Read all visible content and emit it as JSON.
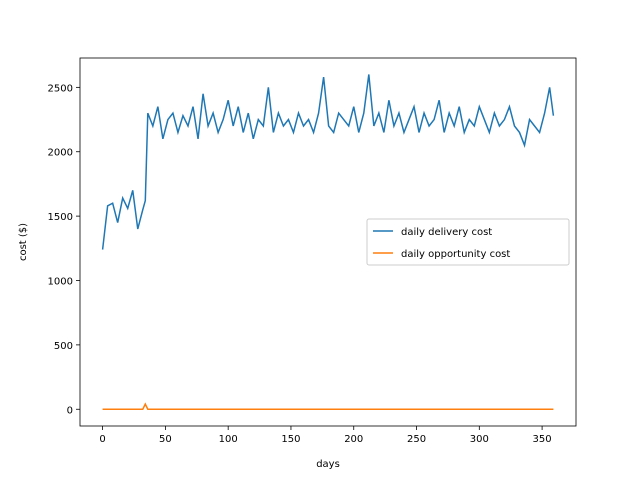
{
  "chart_data": {
    "type": "line",
    "xlabel": "days",
    "ylabel": "cost ($)",
    "x": [
      0,
      4,
      8,
      12,
      16,
      20,
      24,
      28,
      32,
      34,
      36,
      40,
      44,
      48,
      52,
      56,
      60,
      64,
      68,
      72,
      76,
      80,
      84,
      88,
      92,
      96,
      100,
      104,
      108,
      112,
      116,
      120,
      124,
      128,
      132,
      136,
      140,
      144,
      148,
      152,
      156,
      160,
      164,
      168,
      172,
      176,
      180,
      184,
      188,
      192,
      196,
      200,
      204,
      208,
      212,
      216,
      220,
      224,
      228,
      232,
      236,
      240,
      244,
      248,
      252,
      256,
      260,
      264,
      268,
      272,
      276,
      280,
      284,
      288,
      292,
      296,
      300,
      304,
      308,
      312,
      316,
      320,
      324,
      328,
      332,
      336,
      340,
      344,
      348,
      352,
      356,
      359
    ],
    "series": [
      {
        "name": "daily delivery cost",
        "color": "#1f77b4",
        "values": [
          1240,
          1580,
          1600,
          1450,
          1640,
          1560,
          1700,
          1400,
          1550,
          1620,
          2300,
          2200,
          2350,
          2100,
          2250,
          2300,
          2150,
          2280,
          2200,
          2350,
          2100,
          2450,
          2200,
          2300,
          2150,
          2250,
          2400,
          2200,
          2350,
          2150,
          2300,
          2100,
          2250,
          2200,
          2500,
          2150,
          2300,
          2200,
          2250,
          2150,
          2300,
          2200,
          2250,
          2150,
          2300,
          2580,
          2200,
          2150,
          2300,
          2250,
          2200,
          2350,
          2150,
          2300,
          2600,
          2200,
          2300,
          2150,
          2400,
          2200,
          2300,
          2150,
          2250,
          2350,
          2150,
          2300,
          2200,
          2250,
          2400,
          2150,
          2300,
          2200,
          2350,
          2150,
          2250,
          2200,
          2350,
          2250,
          2150,
          2300,
          2200,
          2250,
          2350,
          2200,
          2150,
          2050,
          2250,
          2200,
          2150,
          2300,
          2500,
          2280
        ]
      },
      {
        "name": "daily opportunity cost",
        "color": "#ff7f0e",
        "values": [
          0,
          0,
          0,
          0,
          0,
          0,
          0,
          0,
          0,
          40,
          0,
          0,
          0,
          0,
          0,
          0,
          0,
          0,
          0,
          0,
          0,
          0,
          0,
          0,
          0,
          0,
          0,
          0,
          0,
          0,
          0,
          0,
          0,
          0,
          0,
          0,
          0,
          0,
          0,
          0,
          0,
          0,
          0,
          0,
          0,
          0,
          0,
          0,
          0,
          0,
          0,
          0,
          0,
          0,
          0,
          0,
          0,
          0,
          0,
          0,
          0,
          0,
          0,
          0,
          0,
          0,
          0,
          0,
          0,
          0,
          0,
          0,
          0,
          0,
          0,
          0,
          0,
          0,
          0,
          0,
          0,
          0,
          0,
          0,
          0,
          0,
          0,
          0,
          0,
          0,
          0,
          0
        ]
      }
    ],
    "xlim": [
      -18,
      377
    ],
    "ylim": [
      -130,
      2728
    ],
    "xticks": [
      0,
      50,
      100,
      150,
      200,
      250,
      300,
      350
    ],
    "yticks": [
      0,
      500,
      1000,
      1500,
      2000,
      2500
    ],
    "legend": "center right"
  }
}
